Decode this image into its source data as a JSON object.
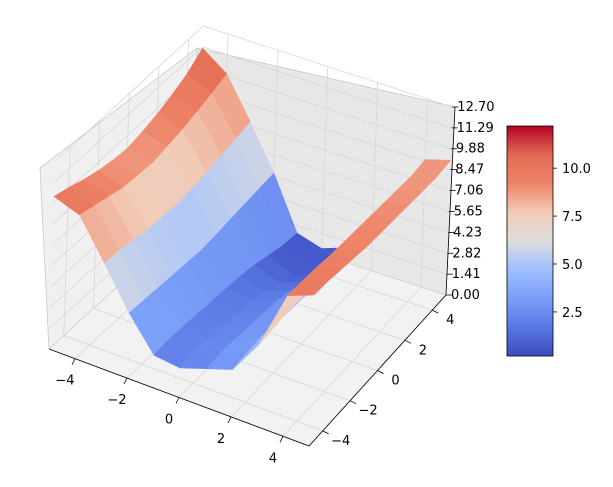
{
  "chart_data": {
    "type": "surface",
    "title": "",
    "xlabel": "",
    "ylabel": "",
    "zlabel": "",
    "colormap": "coolwarm",
    "grid": true,
    "xlim": [
      -5,
      5
    ],
    "ylim": [
      -5,
      5
    ],
    "zlim": [
      0.0,
      12.7
    ],
    "xticks": [
      "−4",
      "−2",
      "0",
      "2",
      "4"
    ],
    "yticks": [
      "−4",
      "−2",
      "0",
      "2",
      "4"
    ],
    "zticks": [
      "0.00",
      "1.41",
      "2.82",
      "4.23",
      "5.65",
      "7.06",
      "8.47",
      "9.88",
      "11.29",
      "12.70"
    ],
    "colorbar": {
      "ticks": [
        "2.5",
        "5.0",
        "7.5",
        "10.0"
      ],
      "range": [
        0.2,
        12.2
      ],
      "position": "right"
    },
    "surface_x": [
      -5,
      -4,
      -3,
      -2,
      -1,
      0,
      1,
      2,
      3,
      4,
      5
    ],
    "surface_y": [
      -5,
      -4,
      -3,
      -2,
      -1,
      0,
      1,
      2,
      3,
      4,
      5
    ],
    "surface_z": [
      [
        10.3,
        9.7,
        7.1,
        4.4,
        2.2,
        2.0,
        2.6,
        3.2,
        5.6,
        9.5,
        10.2
      ],
      [
        10.0,
        9.4,
        7.0,
        4.3,
        2.3,
        2.1,
        2.7,
        3.3,
        5.7,
        9.4,
        10.1
      ],
      [
        9.6,
        9.1,
        6.8,
        4.2,
        2.2,
        2.0,
        2.6,
        3.4,
        5.8,
        9.3,
        9.9
      ],
      [
        9.3,
        8.8,
        6.6,
        4.1,
        2.1,
        1.9,
        2.5,
        3.3,
        5.7,
        9.1,
        9.7
      ],
      [
        9.1,
        8.7,
        6.5,
        4.0,
        2.0,
        1.8,
        2.4,
        3.2,
        5.6,
        9.0,
        9.5
      ],
      [
        9.0,
        8.6,
        6.4,
        3.9,
        1.9,
        1.7,
        2.3,
        3.1,
        5.5,
        8.9,
        9.4
      ],
      [
        9.2,
        8.8,
        6.5,
        4.0,
        1.8,
        1.4,
        2.0,
        2.9,
        5.4,
        8.8,
        9.3
      ],
      [
        9.5,
        9.0,
        6.7,
        4.1,
        1.6,
        1.0,
        1.6,
        2.7,
        5.3,
        8.7,
        9.2
      ],
      [
        9.9,
        9.3,
        6.9,
        4.2,
        1.3,
        0.5,
        1.2,
        2.5,
        5.2,
        8.6,
        9.1
      ],
      [
        10.4,
        9.6,
        7.1,
        4.3,
        1.0,
        0.3,
        0.9,
        2.3,
        5.1,
        8.5,
        9.0
      ],
      [
        11.2,
        10.0,
        7.3,
        4.4,
        0.9,
        0.4,
        1.0,
        2.4,
        5.2,
        8.6,
        9.1
      ]
    ]
  }
}
